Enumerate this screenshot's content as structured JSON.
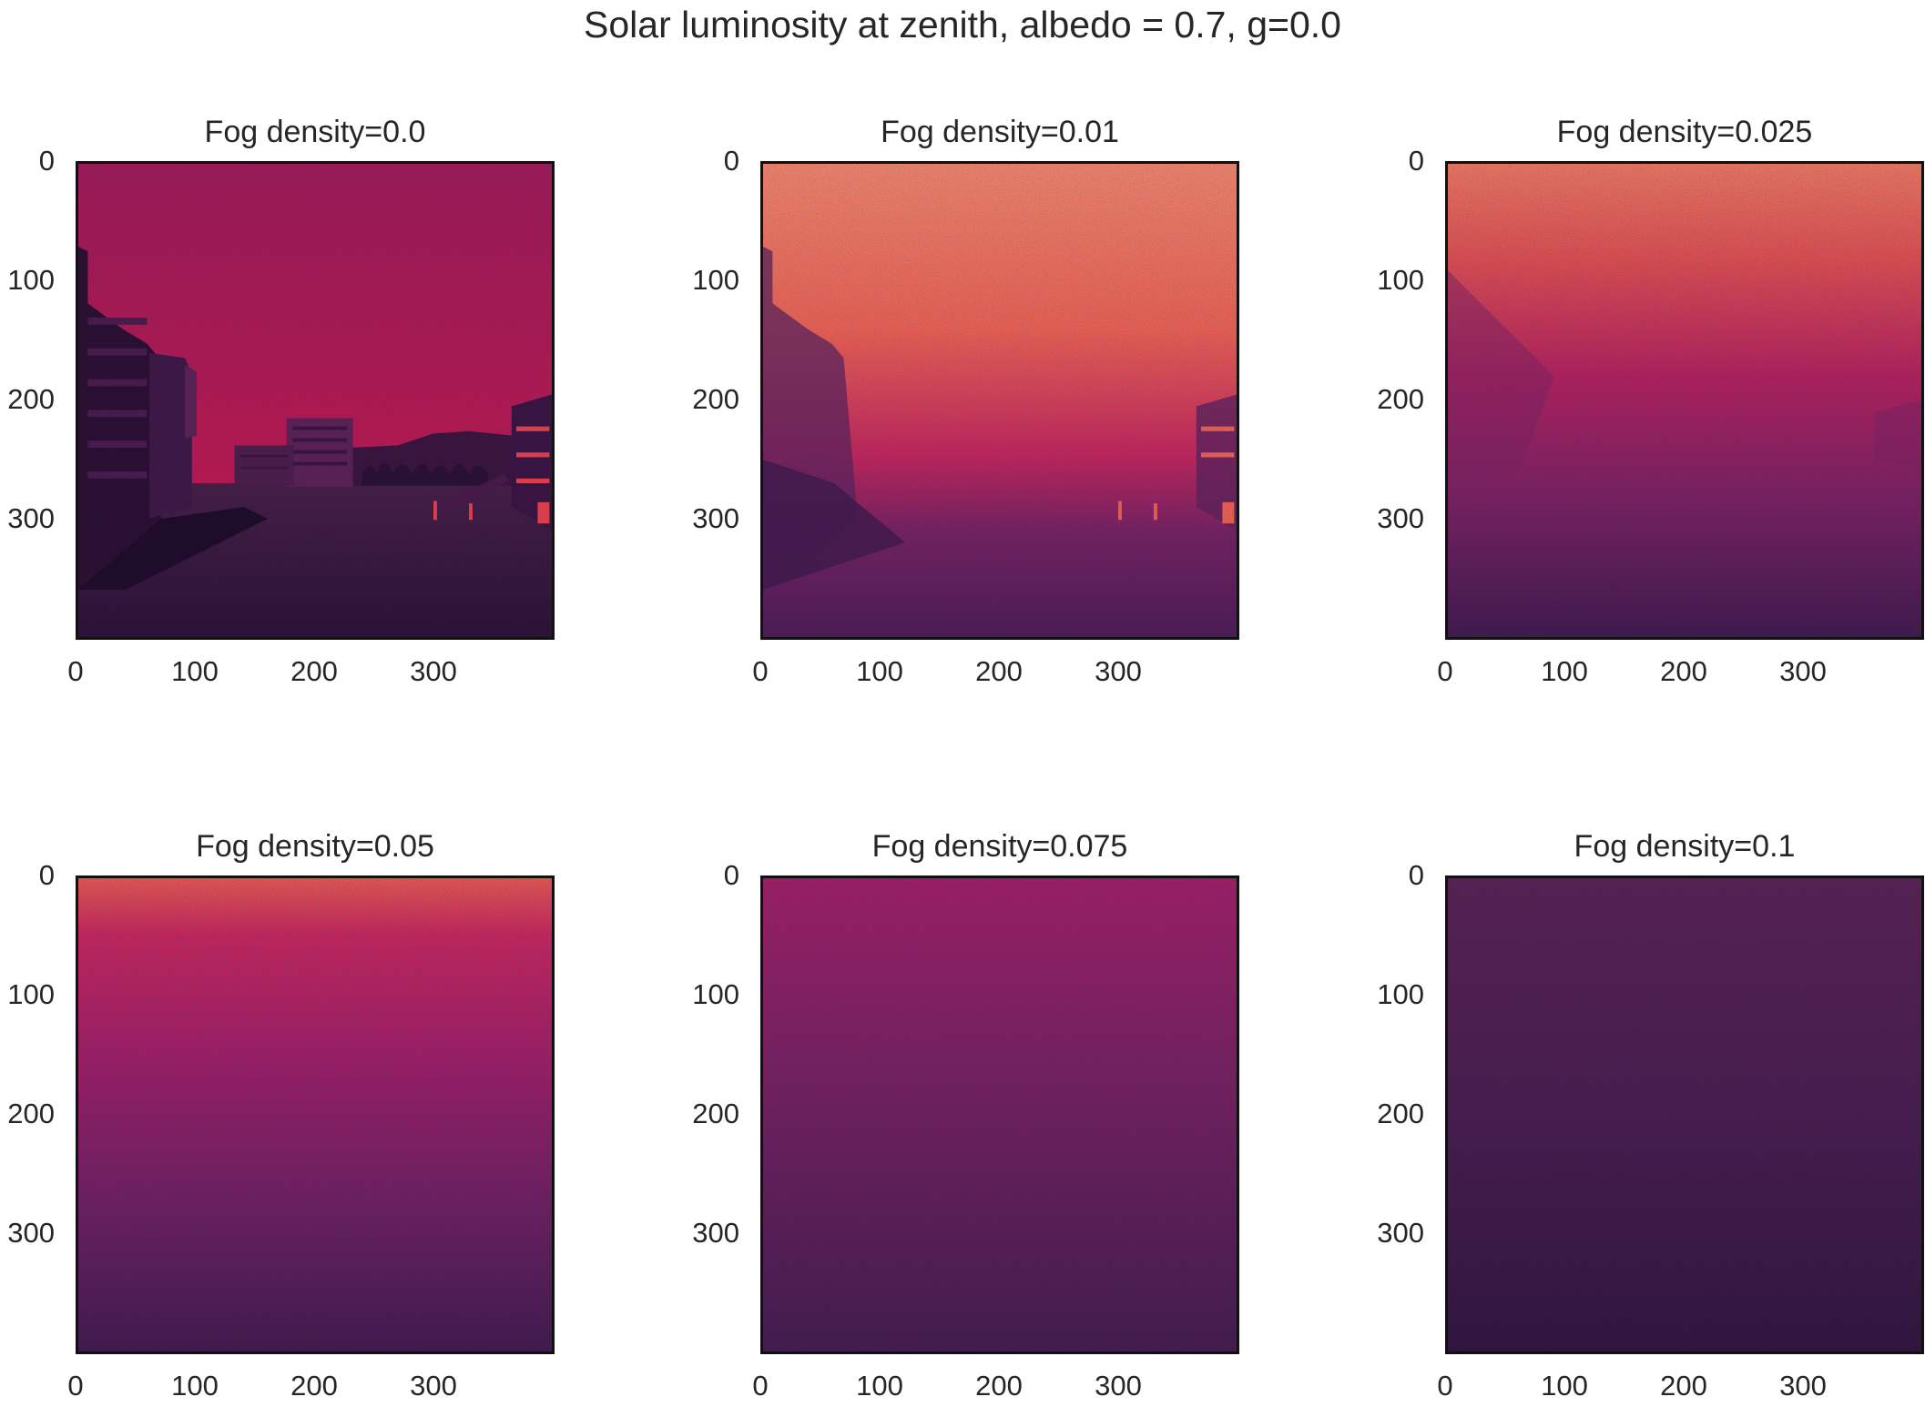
{
  "figure": {
    "title": "Solar luminosity at zenith, albedo = 0.7, g=0.0"
  },
  "chart_data": [
    {
      "type": "heatmap",
      "title": "Fog density=0.0",
      "fog_density": 0.0,
      "x_ticks": [
        "0",
        "100",
        "200",
        "300"
      ],
      "y_ticks": [
        "0",
        "100",
        "200",
        "300"
      ],
      "xlim": [
        0,
        400
      ],
      "ylim": [
        400,
        0
      ],
      "colormap": "rocket",
      "scene": "urban street scene: dim buildings on left and right, bright uniform sky, dark ground"
    },
    {
      "type": "heatmap",
      "title": "Fog density=0.01",
      "fog_density": 0.01,
      "x_ticks": [
        "0",
        "100",
        "200",
        "300"
      ],
      "y_ticks": [
        "0",
        "100",
        "200",
        "300"
      ],
      "xlim": [
        0,
        400
      ],
      "ylim": [
        400,
        0
      ],
      "colormap": "rocket",
      "scene": "bright noisy sky, buildings partially visible through fog"
    },
    {
      "type": "heatmap",
      "title": "Fog density=0.025",
      "fog_density": 0.025,
      "x_ticks": [
        "0",
        "100",
        "200",
        "300"
      ],
      "y_ticks": [
        "0",
        "100",
        "200",
        "300"
      ],
      "xlim": [
        0,
        400
      ],
      "ylim": [
        400,
        0
      ],
      "colormap": "rocket",
      "scene": "noisy gradient from bright top to dark bottom, faint silhouettes"
    },
    {
      "type": "heatmap",
      "title": "Fog density=0.05",
      "fog_density": 0.05,
      "x_ticks": [
        "0",
        "100",
        "200",
        "300"
      ],
      "y_ticks": [
        "0",
        "100",
        "200",
        "300"
      ],
      "xlim": [
        0,
        400
      ],
      "ylim": [
        400,
        0
      ],
      "colormap": "rocket",
      "scene": "noisy vertical gradient, bright orange at top"
    },
    {
      "type": "heatmap",
      "title": "Fog density=0.075",
      "fog_density": 0.075,
      "x_ticks": [
        "0",
        "100",
        "200",
        "300"
      ],
      "y_ticks": [
        "0",
        "100",
        "200",
        "300"
      ],
      "xlim": [
        0,
        400
      ],
      "ylim": [
        400,
        0
      ],
      "colormap": "rocket",
      "scene": "noisy magenta-purple field, slightly brighter at top"
    },
    {
      "type": "heatmap",
      "title": "Fog density=0.1",
      "fog_density": 0.1,
      "x_ticks": [
        "0",
        "100",
        "200",
        "300"
      ],
      "y_ticks": [
        "0",
        "100",
        "200",
        "300"
      ],
      "xlim": [
        0,
        400
      ],
      "ylim": [
        400,
        0
      ],
      "colormap": "rocket",
      "scene": "noisy dark purple field"
    }
  ],
  "colors": {
    "rocket_stops": [
      "#1c1030",
      "#3a1942",
      "#5a1d55",
      "#7b1f5f",
      "#9c1c64",
      "#bf1f5a",
      "#dc3b4b",
      "#ee6350",
      "#f3886a"
    ],
    "frame": "#111111"
  }
}
